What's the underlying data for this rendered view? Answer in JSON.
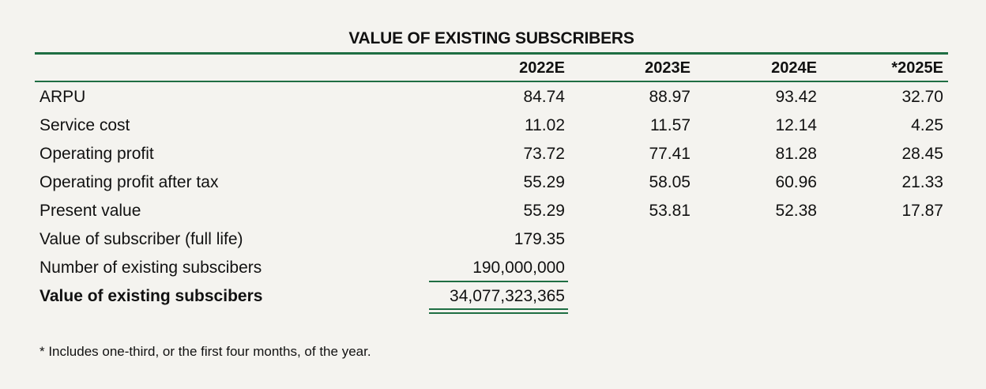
{
  "title": "VALUE OF EXISTING SUBSCRIBERS",
  "columns": [
    "2022E",
    "2023E",
    "2024E",
    "*2025E"
  ],
  "rows": [
    {
      "label": "ARPU",
      "values": [
        "84.74",
        "88.97",
        "93.42",
        "32.70"
      ]
    },
    {
      "label": "Service cost",
      "values": [
        "11.02",
        "11.57",
        "12.14",
        "4.25"
      ]
    },
    {
      "label": "Operating profit",
      "values": [
        "73.72",
        "77.41",
        "81.28",
        "28.45"
      ]
    },
    {
      "label": "Operating profit after tax",
      "values": [
        "55.29",
        "58.05",
        "60.96",
        "21.33"
      ]
    },
    {
      "label": "Present value",
      "values": [
        "55.29",
        "53.81",
        "52.38",
        "17.87"
      ]
    },
    {
      "label": "Value of subscriber (full life)",
      "values": [
        "179.35"
      ]
    },
    {
      "label": "Number of existing subscibers",
      "values": [
        "190,000,000"
      ]
    },
    {
      "label": "Value of existing subscibers",
      "values": [
        "34,077,323,365"
      ]
    }
  ],
  "footnote": "* Includes one-third, or the first four months, of the year.",
  "colors": {
    "accent_green": "#1f6e43",
    "background": "#f4f3ef",
    "text": "#111111"
  }
}
